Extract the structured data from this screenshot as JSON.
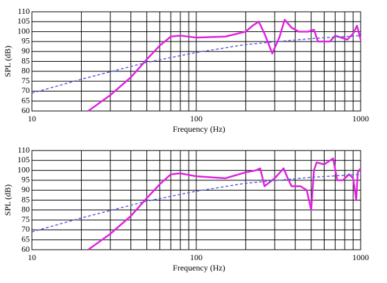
{
  "chart_data": [
    {
      "type": "line",
      "xlabel": "Frequency (Hz)",
      "ylabel": "SPL (dB)",
      "xscale": "log",
      "grid": true,
      "xlim": [
        10,
        1000
      ],
      "ylim": [
        60,
        110
      ],
      "xticks": [
        10,
        100,
        1000
      ],
      "xminorticks": [
        20,
        30,
        40,
        50,
        60,
        70,
        80,
        90,
        200,
        300,
        400,
        500,
        600,
        700,
        800,
        900
      ],
      "yticks": [
        60,
        65,
        70,
        75,
        80,
        85,
        90,
        95,
        100,
        105,
        110
      ],
      "series": [
        {
          "color": "#e020e0",
          "dash": false,
          "x": [
            22,
            30,
            40,
            50,
            60,
            70,
            80,
            100,
            150,
            200,
            220,
            240,
            260,
            290,
            320,
            345,
            380,
            420,
            480,
            520,
            550,
            600,
            650,
            700,
            760,
            830,
            900,
            950,
            1000
          ],
          "values": [
            60,
            68,
            77,
            86,
            93,
            97.5,
            98,
            97,
            97.5,
            100,
            103,
            105,
            99,
            89,
            97,
            106,
            102,
            100,
            100,
            101,
            95,
            95,
            95,
            98,
            97,
            96,
            99,
            103,
            96
          ]
        },
        {
          "color": "#5a5ae0",
          "dash": true,
          "x": [
            10,
            20,
            50,
            100,
            200,
            500,
            1000
          ],
          "values": [
            69,
            76,
            84.5,
            89.5,
            93.5,
            96.5,
            98
          ]
        }
      ]
    },
    {
      "type": "line",
      "xlabel": "Frequency (Hz)",
      "ylabel": "SPL (dB)",
      "xscale": "log",
      "grid": true,
      "xlim": [
        10,
        1000
      ],
      "ylim": [
        60,
        110
      ],
      "xticks": [
        10,
        100,
        1000
      ],
      "xminorticks": [
        20,
        30,
        40,
        50,
        60,
        70,
        80,
        90,
        200,
        300,
        400,
        500,
        600,
        700,
        800,
        900
      ],
      "yticks": [
        60,
        65,
        70,
        75,
        80,
        85,
        90,
        95,
        100,
        105,
        110
      ],
      "series": [
        {
          "color": "#e020e0",
          "dash": false,
          "x": [
            22,
            30,
            40,
            50,
            60,
            70,
            80,
            100,
            150,
            200,
            230,
            245,
            260,
            300,
            340,
            360,
            380,
            430,
            470,
            500,
            520,
            540,
            600,
            680,
            720,
            780,
            850,
            900,
            940,
            960,
            1000
          ],
          "values": [
            60,
            68,
            77,
            86,
            93,
            98,
            98.5,
            97,
            96,
            99,
            100,
            101,
            92,
            96,
            101,
            96,
            92,
            92,
            90,
            80,
            100,
            104,
            103,
            106,
            95,
            95,
            98,
            96,
            85,
            99,
            101
          ]
        },
        {
          "color": "#5a5ae0",
          "dash": true,
          "x": [
            10,
            20,
            50,
            100,
            200,
            500,
            1000
          ],
          "values": [
            69,
            76,
            84.5,
            89.5,
            93.5,
            96.5,
            98
          ]
        }
      ]
    }
  ]
}
